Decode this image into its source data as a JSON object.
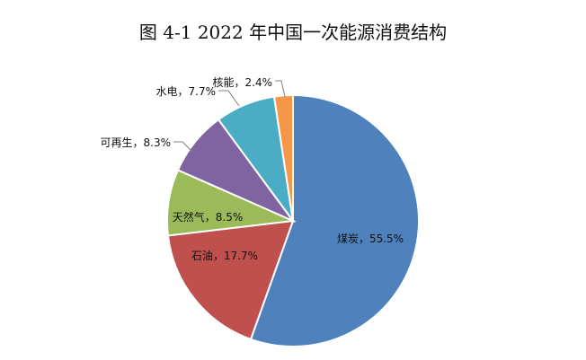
{
  "chart_data": {
    "type": "pie",
    "title": "图 4-1 2022 年中国一次能源消费结构",
    "slices": [
      {
        "label": "煤炭，55.5%",
        "value": 55.5,
        "color": "#4f81bd"
      },
      {
        "label": "石油，17.7%",
        "value": 17.7,
        "color": "#c0504d"
      },
      {
        "label": "天然气，8.5%",
        "value": 8.5,
        "color": "#9bbb59"
      },
      {
        "label": "可再生，8.3%",
        "value": 8.3,
        "color": "#8064a2"
      },
      {
        "label": "水电，7.7%",
        "value": 7.7,
        "color": "#4bacc6"
      },
      {
        "label": "核能，2.4%",
        "value": 2.4,
        "color": "#f79646"
      }
    ],
    "start_angle_deg": 0,
    "direction": "clockwise",
    "legend": "none"
  }
}
